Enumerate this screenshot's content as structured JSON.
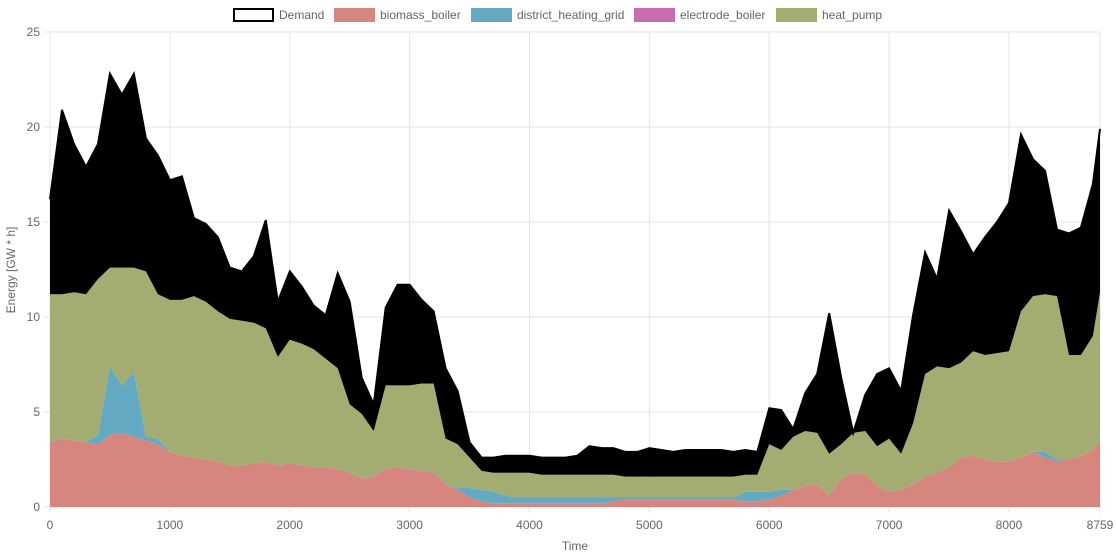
{
  "chart_data": {
    "type": "area",
    "xlabel": "Time",
    "ylabel": "Energy [GW * h]",
    "xlim": [
      0,
      8759
    ],
    "ylim": [
      0,
      25
    ],
    "x_ticks": [
      0,
      1000,
      2000,
      3000,
      4000,
      5000,
      6000,
      7000,
      8000,
      8759
    ],
    "y_ticks": [
      0,
      5,
      10,
      15,
      20,
      25
    ],
    "grid": true,
    "legend_position": "top-center",
    "legend": [
      "Demand",
      "biomass_boiler",
      "district_heating_grid",
      "electrode_boiler",
      "heat_pump"
    ],
    "x": [
      0,
      100,
      200,
      300,
      400,
      500,
      600,
      700,
      800,
      900,
      1000,
      1100,
      1200,
      1300,
      1400,
      1500,
      1600,
      1700,
      1800,
      1900,
      2000,
      2100,
      2200,
      2300,
      2400,
      2500,
      2600,
      2700,
      2800,
      2900,
      3000,
      3100,
      3200,
      3300,
      3400,
      3500,
      3600,
      3700,
      3800,
      3900,
      4000,
      4100,
      4200,
      4300,
      4400,
      4500,
      4600,
      4700,
      4800,
      4900,
      5000,
      5100,
      5200,
      5300,
      5400,
      5500,
      5600,
      5700,
      5800,
      5900,
      6000,
      6100,
      6200,
      6300,
      6400,
      6500,
      6600,
      6700,
      6800,
      6900,
      7000,
      7100,
      7200,
      7300,
      7400,
      7500,
      7600,
      7700,
      7800,
      7900,
      8000,
      8100,
      8200,
      8300,
      8400,
      8500,
      8600,
      8700,
      8759
    ],
    "series": [
      {
        "name": "biomass_boiler",
        "color": "#d6867e",
        "values": [
          3.4,
          3.6,
          3.5,
          3.4,
          3.3,
          3.8,
          3.9,
          3.7,
          3.5,
          3.3,
          2.9,
          2.7,
          2.6,
          2.5,
          2.4,
          2.2,
          2.2,
          2.3,
          2.4,
          2.2,
          2.3,
          2.2,
          2.1,
          2.1,
          2.0,
          1.8,
          1.5,
          1.6,
          2.0,
          2.1,
          2.0,
          1.9,
          1.8,
          1.2,
          0.9,
          0.5,
          0.3,
          0.2,
          0.2,
          0.2,
          0.2,
          0.2,
          0.2,
          0.2,
          0.2,
          0.2,
          0.2,
          0.3,
          0.4,
          0.4,
          0.4,
          0.4,
          0.4,
          0.4,
          0.4,
          0.4,
          0.4,
          0.4,
          0.3,
          0.3,
          0.4,
          0.6,
          0.9,
          1.1,
          1.2,
          0.6,
          1.5,
          1.8,
          1.7,
          1.1,
          0.8,
          0.9,
          1.2,
          1.6,
          1.8,
          2.1,
          2.6,
          2.7,
          2.5,
          2.4,
          2.4,
          2.6,
          2.9,
          2.6,
          2.4,
          2.5,
          2.7,
          3.0,
          3.5
        ]
      },
      {
        "name": "district_heating_grid",
        "color": "#63a9c1",
        "values": [
          0.0,
          0.0,
          0.0,
          0.0,
          0.5,
          3.6,
          2.5,
          3.4,
          0.2,
          0.3,
          0.0,
          0.0,
          0.0,
          0.0,
          0.0,
          0.0,
          0.0,
          0.0,
          0.0,
          0.0,
          0.0,
          0.0,
          0.0,
          0.0,
          0.0,
          0.0,
          0.0,
          0.0,
          0.0,
          0.0,
          0.0,
          0.0,
          0.0,
          0.0,
          0.1,
          0.5,
          0.6,
          0.6,
          0.4,
          0.3,
          0.3,
          0.3,
          0.3,
          0.3,
          0.3,
          0.3,
          0.3,
          0.2,
          0.1,
          0.1,
          0.1,
          0.1,
          0.1,
          0.1,
          0.1,
          0.1,
          0.1,
          0.1,
          0.5,
          0.5,
          0.4,
          0.3,
          0.0,
          0.0,
          0.0,
          0.0,
          0.0,
          0.0,
          0.0,
          0.0,
          0.0,
          0.0,
          0.0,
          0.0,
          0.0,
          0.0,
          0.0,
          0.0,
          0.0,
          0.0,
          0.0,
          0.0,
          0.0,
          0.3,
          0.1,
          0.0,
          0.0,
          0.0,
          0.0
        ]
      },
      {
        "name": "electrode_boiler",
        "color": "#c86bb2",
        "values": [
          0,
          0,
          0,
          0,
          0,
          0,
          0,
          0,
          0,
          0,
          0,
          0,
          0,
          0,
          0,
          0,
          0,
          0,
          0,
          0,
          0,
          0,
          0,
          0,
          0,
          0,
          0,
          0,
          0,
          0,
          0,
          0,
          0,
          0,
          0,
          0,
          0,
          0,
          0,
          0,
          0,
          0,
          0,
          0,
          0,
          0,
          0,
          0,
          0,
          0,
          0,
          0,
          0,
          0,
          0,
          0,
          0,
          0,
          0,
          0,
          0,
          0,
          0,
          0,
          0,
          0,
          0,
          0,
          0,
          0,
          0,
          0,
          0,
          0,
          0,
          0,
          0,
          0,
          0,
          0,
          0,
          0,
          0,
          0,
          0,
          0,
          0,
          0,
          0
        ]
      },
      {
        "name": "heat_pump",
        "color": "#a3ad72",
        "values": [
          7.8,
          7.6,
          7.8,
          7.8,
          8.2,
          5.2,
          6.2,
          5.5,
          8.7,
          7.6,
          8.0,
          8.2,
          8.5,
          8.3,
          7.9,
          7.7,
          7.6,
          7.4,
          7.0,
          5.7,
          6.5,
          6.4,
          6.2,
          5.7,
          5.3,
          3.6,
          3.4,
          2.4,
          4.4,
          4.3,
          4.4,
          4.6,
          4.7,
          2.4,
          2.3,
          1.6,
          1.0,
          1.0,
          1.2,
          1.3,
          1.3,
          1.2,
          1.2,
          1.2,
          1.2,
          1.2,
          1.2,
          1.2,
          1.1,
          1.1,
          1.1,
          1.1,
          1.1,
          1.1,
          1.1,
          1.1,
          1.1,
          1.1,
          0.9,
          0.9,
          2.5,
          2.1,
          2.8,
          2.9,
          2.7,
          2.2,
          1.8,
          2.1,
          2.3,
          2.1,
          2.8,
          1.9,
          3.2,
          5.4,
          5.6,
          5.2,
          5.0,
          5.5,
          5.5,
          5.7,
          5.8,
          7.7,
          8.2,
          8.3,
          8.6,
          5.5,
          5.3,
          6.0,
          7.8
        ]
      },
      {
        "name": "Demand",
        "color": "#000000",
        "values": [
          16.2,
          20.9,
          19.1,
          17.9,
          19.1,
          22.8,
          21.7,
          22.8,
          19.4,
          18.5,
          17.2,
          17.4,
          15.2,
          14.9,
          14.2,
          12.6,
          12.4,
          13.2,
          15.1,
          10.8,
          12.4,
          11.6,
          10.6,
          10.1,
          12.3,
          10.8,
          6.8,
          5.4,
          10.5,
          11.7,
          11.7,
          10.9,
          10.3,
          7.3,
          6.1,
          3.4,
          2.6,
          2.6,
          2.7,
          2.7,
          2.7,
          2.6,
          2.6,
          2.6,
          2.7,
          3.2,
          3.1,
          3.1,
          2.9,
          2.9,
          3.1,
          3.0,
          2.9,
          3.0,
          3.0,
          3.0,
          3.0,
          2.9,
          3.0,
          2.9,
          5.2,
          5.1,
          4.1,
          6.0,
          7.0,
          10.2,
          6.8,
          3.9,
          5.9,
          7.0,
          7.3,
          6.1,
          10.1,
          13.4,
          12.0,
          15.6,
          14.5,
          13.3,
          14.2,
          15.0,
          16.0,
          19.6,
          18.3,
          17.7,
          14.6,
          14.4,
          14.7,
          17.0,
          19.9
        ]
      }
    ]
  }
}
